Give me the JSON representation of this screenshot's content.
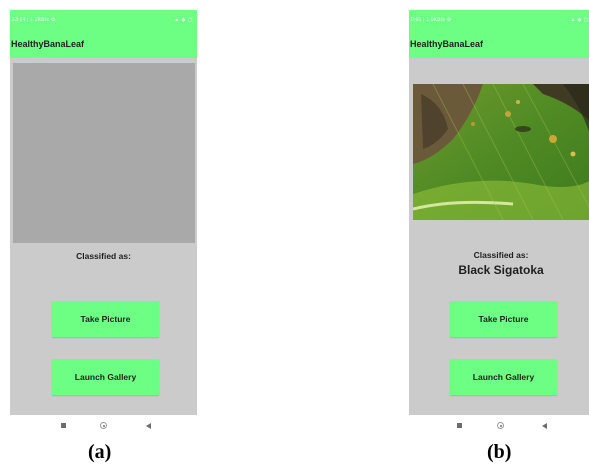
{
  "panels": [
    {
      "caption": "(a)",
      "status": {
        "left": "23:14 | 1.2KB/s ⚙",
        "right": "▲ ◆ ▢"
      },
      "app_title": "HealthyBanaLeaf",
      "image_state": "empty",
      "classified_label": "Classified as:",
      "result": "",
      "take_picture_label": "Take Picture",
      "launch_gallery_label": "Launch Gallery"
    },
    {
      "caption": "(b)",
      "status": {
        "left": "0:01 | 1.0KB/s ⚙",
        "right": "▲ ◆ ▢"
      },
      "app_title": "HealthyBanaLeaf",
      "image_state": "banana-leaf-photo",
      "classified_label": "Classified as:",
      "result": "Black Sigatoka",
      "take_picture_label": "Take Picture",
      "launch_gallery_label": "Launch Gallery"
    }
  ],
  "colors": {
    "accent": "#6cff84",
    "content_bg": "#cbcbcb",
    "image_placeholder": "#a9a9a9"
  }
}
